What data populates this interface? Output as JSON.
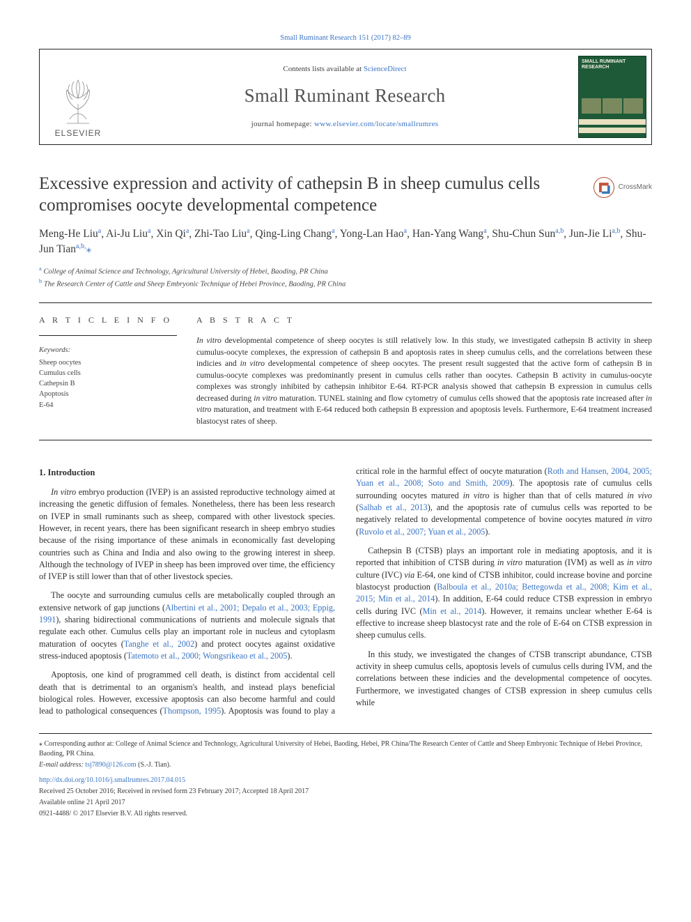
{
  "journal": {
    "top_citation": "Small Ruminant Research 151 (2017) 82–89",
    "contents_prefix": "Contents lists available at ",
    "contents_link": "ScienceDirect",
    "name": "Small Ruminant Research",
    "homepage_prefix": "journal homepage: ",
    "homepage_url": "www.elsevier.com/locate/smallrumres",
    "publisher_word": "ELSEVIER",
    "cover_title": "SMALL RUMINANT RESEARCH",
    "cover_bg": "#1e5a38",
    "cover_band": "#e8e0c0"
  },
  "crossmark_label": "CrossMark",
  "article": {
    "title": "Excessive expression and activity of cathepsin B in sheep cumulus cells compromises oocyte developmental competence",
    "authors_html": "Meng-He Liu<sup>a</sup>, Ai-Ju Liu<sup>a</sup>, Xin Qi<sup>a</sup>, Zhi-Tao Liu<sup>a</sup>, Qing-Ling Chang<sup>a</sup>, Yong-Lan Hao<sup>a</sup>, Han-Yang Wang<sup>a</sup>, Shu-Chun Sun<sup>a,b</sup>, Jun-Jie Li<sup>a,b</sup>, Shu-Jun Tian<sup>a,b,</sup><span class='star'>⁎</span>",
    "affiliations": [
      {
        "sup": "a",
        "text": "College of Animal Science and Technology, Agricultural University of Hebei, Baoding, PR China"
      },
      {
        "sup": "b",
        "text": "The Research Center of Cattle and Sheep Embryonic Technique of Hebei Province, Baoding, PR China"
      }
    ]
  },
  "labels": {
    "article_info": "A R T I C L E  I N F O",
    "abstract": "A B S T R A C T",
    "keywords_head": "Keywords:"
  },
  "keywords": [
    "Sheep oocytes",
    "Cumulus cells",
    "Cathepsin B",
    "Apoptosis",
    "E-64"
  ],
  "abstract": "In vitro developmental competence of sheep oocytes is still relatively low. In this study, we investigated cathepsin B activity in sheep cumulus-oocyte complexes, the expression of cathepsin B and apoptosis rates in sheep cumulus cells, and the correlations between these indicies and in vitro developmental competence of sheep oocytes. The present result suggested that the active form of cathepsin B in cumulus-oocyte complexes was predominantly present in cumulus cells rather than oocytes. Cathepsin B activity in cumulus-oocyte complexes was strongly inhibited by cathepsin inhibitor E-64. RT-PCR analysis showed that cathepsin B expression in cumulus cells decreased during in vitro maturation. TUNEL staining and flow cytometry of cumulus cells showed that the apoptosis rate increased after in vitro maturation, and treatment with E-64 reduced both cathepsin B expression and apoptosis levels. Furthermore, E-64 treatment increased blastocyst rates of sheep.",
  "intro_heading": "1. Introduction",
  "body_paragraphs": [
    "In vitro embryo production (IVEP) is an assisted reproductive technology aimed at increasing the genetic diffusion of females. Nonetheless, there has been less research on IVEP in small ruminants such as sheep, compared with other livestock species. However, in recent years, there has been significant research in sheep embryo studies because of the rising importance of these animals in economically fast developing countries such as China and India and also owing to the growing interest in sheep. Although the technology of IVEP in sheep has been improved over time, the efficiency of IVEP is still lower than that of other livestock species.",
    "The oocyte and surrounding cumulus cells are metabolically coupled through an extensive network of gap junctions (<a>Albertini et al., 2001; Depalo et al., 2003; Eppig, 1991</a>), sharing bidirectional communications of nutrients and molecule signals that regulate each other. Cumulus cells play an important role in nucleus and cytoplasm maturation of oocytes (<a>Tanghe et al., 2002</a>) and protect oocytes against oxidative stress-induced apoptosis (<a>Tatemoto et al., 2000; Wongsrikeao et al., 2005</a>).",
    "Apoptosis, one kind of programmed cell death, is distinct from accidental cell death that is detrimental to an organism's health, and instead plays beneficial biological roles. However, excessive apoptosis can also become harmful and could lead to pathological consequences (<a>Thompson, 1995</a>). Apoptosis was found to play a critical role in the harmful effect of oocyte maturation (<a>Roth and Hansen, 2004, 2005; Yuan et al., 2008; Soto and Smith, 2009</a>). The apoptosis rate of cumulus cells surrounding oocytes matured <em>in vitro</em> is higher than that of cells matured <em>in vivo</em> (<a>Salhab et al., 2013</a>), and the apoptosis rate of cumulus cells was reported to be negatively related to developmental competence of bovine oocytes matured <em>in vitro</em> (<a>Ruvolo et al., 2007; Yuan et al., 2005</a>).",
    "Cathepsin B (CTSB) plays an important role in mediating apoptosis, and it is reported that inhibition of CTSB during <em>in vitro</em> maturation (IVM) as well as <em>in vitro</em> culture (IVC) <em>via</em> E-64, one kind of CTSB inhibitor, could increase bovine and porcine blastocyst production (<a>Balboula et al., 2010a; Bettegowda et al., 2008; Kim et al., 2015; Min et al., 2014</a>). In addition, E-64 could reduce CTSB expression in embryo cells during IVC (<a>Min et al., 2014</a>). However, it remains unclear whether E-64 is effective to increase sheep blastocyst rate and the role of E-64 on CTSB expression in sheep cumulus cells.",
    "In this study, we investigated the changes of CTSB transcript abundance, CTSB activity in sheep cumulus cells, apoptosis levels of cumulus cells during IVM, and the correlations between these indicies and the developmental competence of oocytes. Furthermore, we investigated changes of CTSB expression in sheep cumulus cells while"
  ],
  "footnotes": {
    "corresponding": "⁎ Corresponding author at: College of Animal Science and Technology, Agricultural University of Hebei, Baoding, Hebei, PR China/The Research Center of Cattle and Sheep Embryonic Technique of Hebei Province, Baoding, PR China.",
    "email_label": "E-mail address: ",
    "email": "tsj7890@126.com",
    "email_who": " (S.-J. Tian).",
    "doi": "http://dx.doi.org/10.1016/j.smallrumres.2017.04.015",
    "received": "Received 25 October 2016; Received in revised form 23 February 2017; Accepted 18 April 2017",
    "available": "Available online 21 April 2017",
    "copyright": "0921-4488/ © 2017 Elsevier B.V. All rights reserved."
  },
  "colors": {
    "link": "#3a74c4",
    "text": "#2d2d2d",
    "rule": "#222222"
  }
}
